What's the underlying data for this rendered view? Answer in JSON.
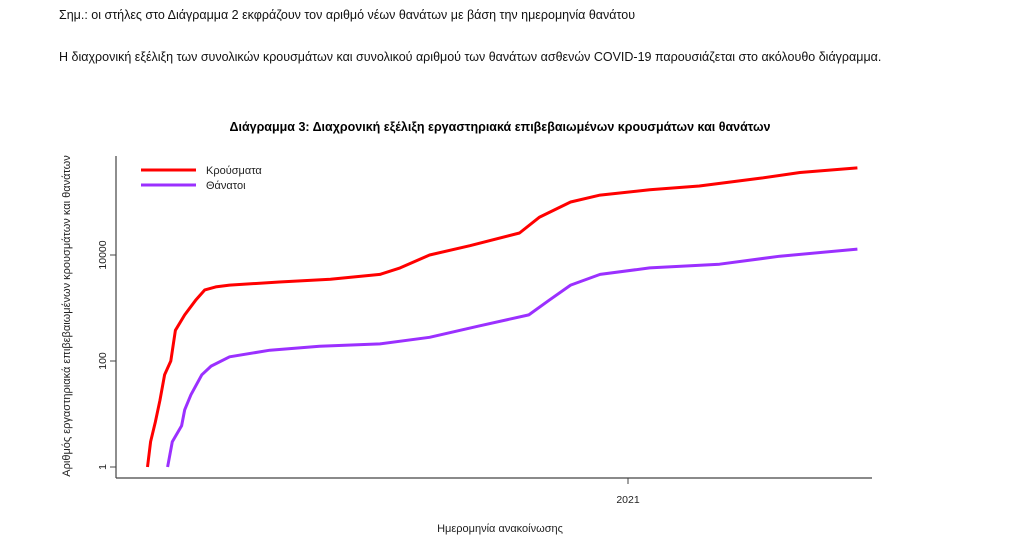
{
  "document": {
    "note": "Σημ.: οι στήλες στο Διάγραμμα 2 εκφράζουν τον αριθμό νέων θανάτων με βάση την ημερομηνία θανάτου",
    "paragraph": "Η διαχρονική εξέλιξη των συνολικών κρουσμάτων και συνολικού αριθμού των θανάτων ασθενών COVID-19 παρουσιάζεται στο ακόλουθο διάγραμμα."
  },
  "chart_data": {
    "type": "line",
    "title": "Διάγραμμα 3: Διαχρονική εξέλιξη εργαστηριακά επιβεβαιωμένων κρουσμάτων και θανάτων",
    "xlabel": "Ημερομηνία ανακοίνωσης",
    "ylabel": "Αριθμός εργαστηριακά επιβεβαιωμένων κρουσμάτων και θανάτων",
    "y_scale": "log",
    "ylim": [
      0.6,
      800000
    ],
    "y_ticks": [
      {
        "value": 1,
        "label": "1"
      },
      {
        "value": 100,
        "label": "100"
      },
      {
        "value": 10000,
        "label": "10000"
      }
    ],
    "x_ticks": [
      {
        "value": "2021-01-01",
        "label": "2021"
      }
    ],
    "xlim": [
      "2020-02-07",
      "2021-06-06"
    ],
    "grid": false,
    "legend_position": "top-left",
    "series": [
      {
        "name": "Κρούσματα",
        "color": "#ff0000",
        "x": [
          "2020-02-26",
          "2020-02-28",
          "2020-03-02",
          "2020-03-05",
          "2020-03-08",
          "2020-03-12",
          "2020-03-15",
          "2020-03-21",
          "2020-03-28",
          "2020-04-03",
          "2020-04-10",
          "2020-04-19",
          "2020-05-21",
          "2020-06-23",
          "2020-07-25",
          "2020-08-07",
          "2020-08-26",
          "2020-09-21",
          "2020-10-23",
          "2020-11-05",
          "2020-11-25",
          "2020-12-14",
          "2021-01-15",
          "2021-02-16",
          "2021-03-27",
          "2021-04-22",
          "2021-05-29"
        ],
        "values": [
          1,
          3,
          7,
          18,
          55,
          100,
          380,
          740,
          1400,
          2200,
          2500,
          2700,
          3100,
          3500,
          4300,
          5700,
          10000,
          15000,
          26000,
          52000,
          100000,
          135000,
          170000,
          200000,
          280000,
          360000,
          440000
        ]
      },
      {
        "name": "Θάνατοι",
        "color": "#9b30ff",
        "x": [
          "2020-03-10",
          "2020-03-13",
          "2020-03-19",
          "2020-03-21",
          "2020-03-25",
          "2020-04-01",
          "2020-04-07",
          "2020-04-19",
          "2020-05-15",
          "2020-06-16",
          "2020-07-25",
          "2020-08-26",
          "2020-09-27",
          "2020-10-29",
          "2020-11-11",
          "2020-11-25",
          "2020-12-14",
          "2021-01-15",
          "2021-03-01",
          "2021-04-09",
          "2021-05-29"
        ],
        "values": [
          1,
          3,
          6,
          12,
          23,
          55,
          80,
          120,
          160,
          190,
          210,
          280,
          460,
          740,
          1400,
          2700,
          4300,
          5700,
          6700,
          9500,
          12900
        ]
      }
    ]
  }
}
